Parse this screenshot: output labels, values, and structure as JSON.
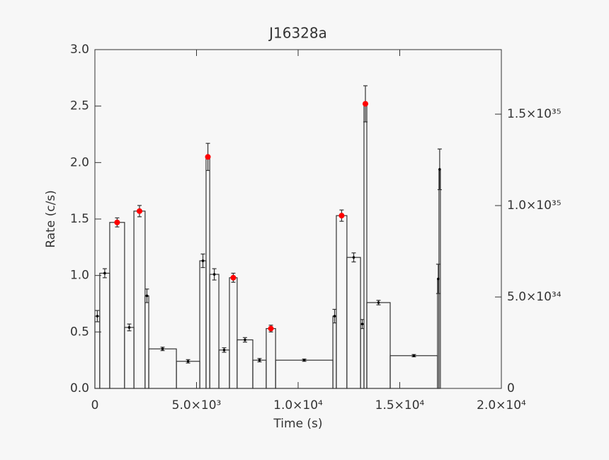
{
  "chart_data": {
    "type": "histogram",
    "title": "J16328a",
    "x_label": "Time (s)",
    "y_label": "Rate (c/s)",
    "bins": [
      0,
      240,
      730,
      1460,
      1920,
      2470,
      2650,
      4010,
      5160,
      5470,
      5650,
      6100,
      6620,
      7000,
      7770,
      8430,
      8890,
      11710,
      11880,
      12400,
      13070,
      13240,
      13380,
      14530,
      16860,
      16930,
      17000
    ],
    "values": [
      0.64,
      1.02,
      1.47,
      0.54,
      1.57,
      0.82,
      0.35,
      0.24,
      1.13,
      2.05,
      1.01,
      0.34,
      0.98,
      0.43,
      0.25,
      0.53,
      0.25,
      0.64,
      1.53,
      1.16,
      0.57,
      2.52,
      0.76,
      0.29,
      0.97,
      1.94
    ],
    "errors": [
      0.05,
      0.04,
      0.04,
      0.03,
      0.05,
      0.06,
      0.015,
      0.015,
      0.06,
      0.12,
      0.05,
      0.02,
      0.04,
      0.02,
      0.015,
      0.03,
      0.01,
      0.06,
      0.05,
      0.04,
      0.04,
      0.16,
      0.02,
      0.01,
      0.13,
      0.18
    ],
    "point_colors": [
      "#000000",
      "#000000",
      "#ff0000",
      "#000000",
      "#ff0000",
      "#000000",
      "#000000",
      "#000000",
      "#000000",
      "#ff0000",
      "#000000",
      "#000000",
      "#ff0000",
      "#000000",
      "#000000",
      "#ff0000",
      "#000000",
      "#000000",
      "#ff0000",
      "#000000",
      "#000000",
      "#ff0000",
      "#000000",
      "#000000",
      "#000000",
      "#000000"
    ],
    "line_color": "#333333",
    "xlim": [
      0,
      20000
    ],
    "xticks": [
      0,
      {
        "value": 5000,
        "label": "5.0×10³"
      },
      {
        "value": 10000,
        "label": "1.0×10⁴"
      },
      {
        "value": 15000,
        "label": "1.5×10⁴"
      },
      {
        "value": 20000,
        "label": "2.0×10⁴"
      }
    ],
    "ylim": [
      0,
      3
    ],
    "yticks": [
      {
        "value": 0,
        "label": "0.0"
      },
      0.5,
      {
        "value": 1,
        "label": "1.0"
      },
      1.5,
      {
        "value": 2,
        "label": "2.0"
      },
      2.5,
      {
        "value": 3,
        "label": "3.0"
      }
    ],
    "y2lim": [
      0,
      1.853e+35
    ],
    "y2ticks": [
      0,
      {
        "value": 5e+34,
        "label": "5.0×10³⁴"
      },
      {
        "value": 1e+35,
        "label": "1.0×10³⁵"
      },
      {
        "value": 1.5e+35,
        "label": "1.5×10³⁵"
      }
    ]
  }
}
